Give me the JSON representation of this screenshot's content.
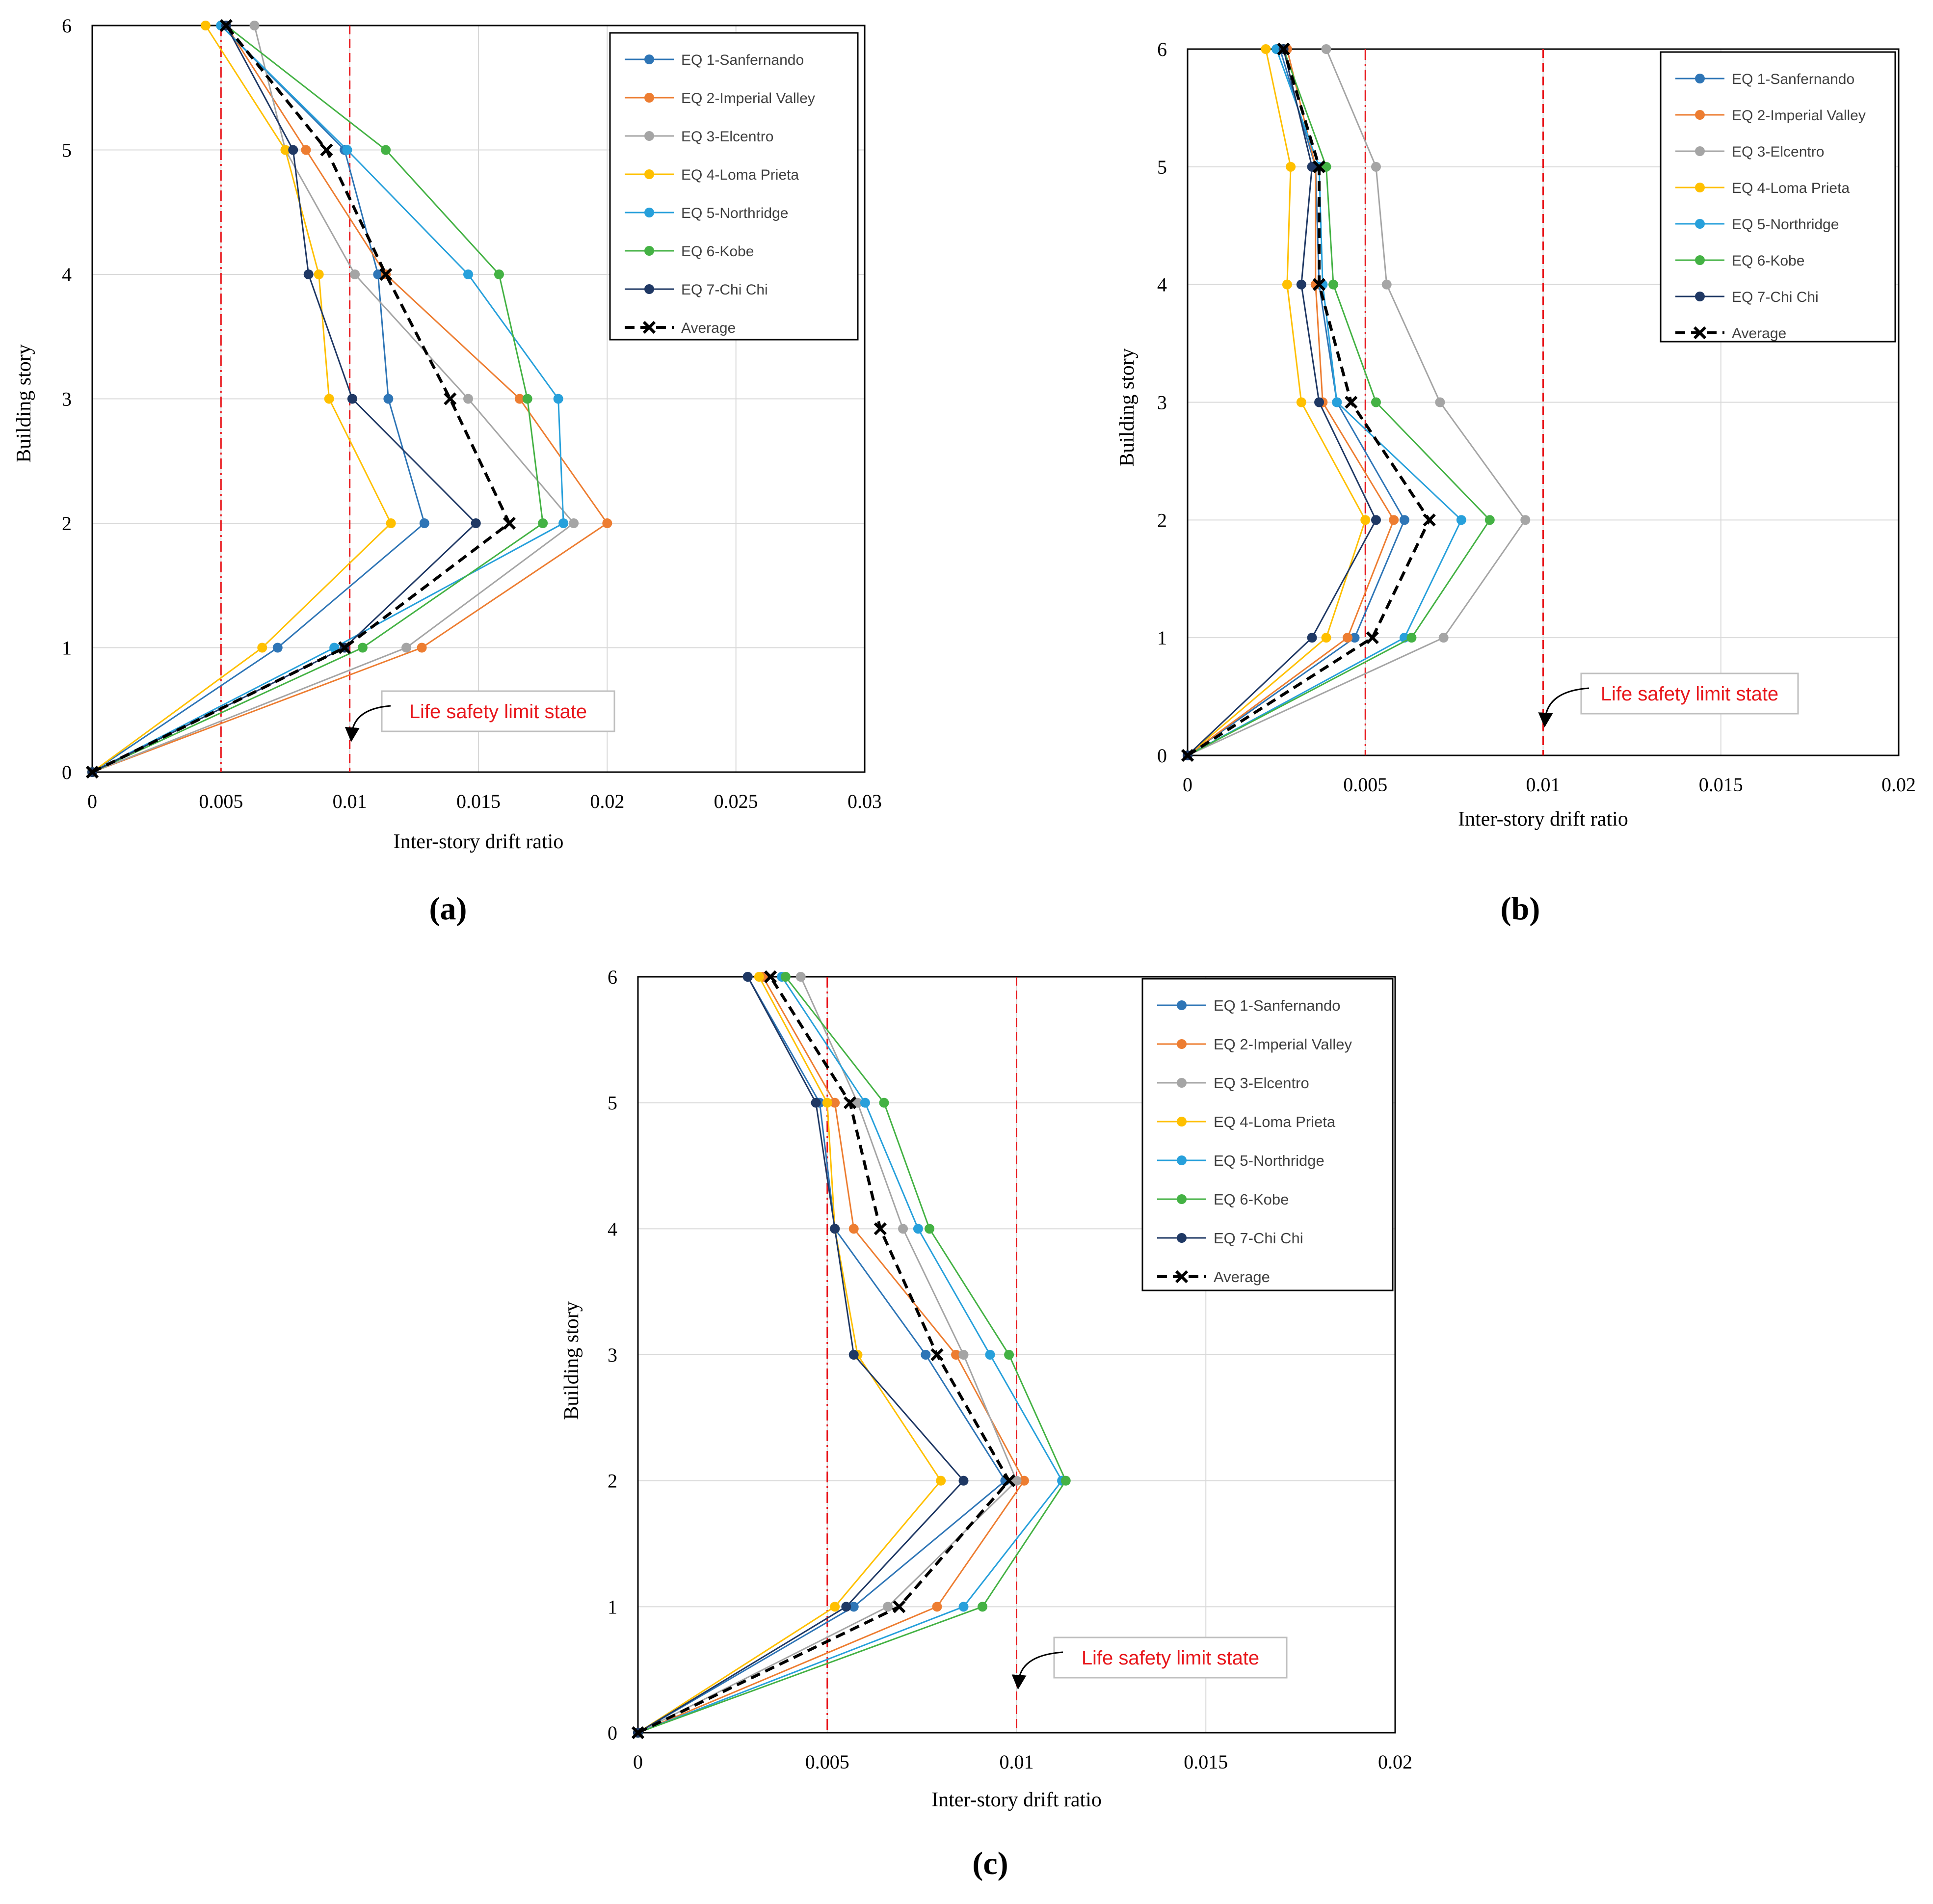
{
  "series_colors": {
    "EQ 1-Sanfernando": "#2E75B6",
    "EQ 2-Imperial Valley": "#ED7D31",
    "EQ 3-Elcentro": "#A5A5A5",
    "EQ 4-Loma Prieta": "#FFC000",
    "EQ 5-Northridge": "#27A0DB",
    "EQ 6-Kobe": "#44B244",
    "EQ 7-Chi Chi": "#1F3864",
    "Average": "#000000"
  },
  "limit_line_color": "#E8161B",
  "annotation_text_color": "#E8161B",
  "chart_data": [
    {
      "panel_label": "(a)",
      "type": "line",
      "xlabel": "Inter-story drift ratio",
      "ylabel": "Building story",
      "xlim": [
        0,
        0.03
      ],
      "ylim": [
        0,
        6
      ],
      "x_ticks": [
        "0",
        "0.005",
        "0.01",
        "0.015",
        "0.02",
        "0.025",
        "0.03"
      ],
      "y_ticks": [
        "0",
        "1",
        "2",
        "3",
        "4",
        "5",
        "6"
      ],
      "grid": true,
      "legend_position": "top-right",
      "limit_lines": [
        0.005,
        0.01
      ],
      "annotation": "Life safety limit state",
      "annotation_target": {
        "x": 0.01,
        "y": 0.3
      },
      "y": [
        0,
        1,
        2,
        3,
        4,
        5,
        6
      ],
      "series": [
        {
          "name": "EQ 1-Sanfernando",
          "x": [
            0,
            0.0072,
            0.0129,
            0.0115,
            0.0111,
            0.0098,
            0.005
          ]
        },
        {
          "name": "EQ 2-Imperial Valley",
          "x": [
            0,
            0.0128,
            0.02,
            0.0166,
            0.0114,
            0.0083,
            0.0052
          ]
        },
        {
          "name": "EQ 3-Elcentro",
          "x": [
            0,
            0.0122,
            0.0187,
            0.0146,
            0.0102,
            0.0075,
            0.0063
          ]
        },
        {
          "name": "EQ 4-Loma Prieta",
          "x": [
            0,
            0.0066,
            0.0116,
            0.0092,
            0.0088,
            0.0075,
            0.0044
          ]
        },
        {
          "name": "EQ 5-Northridge",
          "x": [
            0,
            0.0094,
            0.0183,
            0.0181,
            0.0146,
            0.0099,
            0.005
          ]
        },
        {
          "name": "EQ 6-Kobe",
          "x": [
            0,
            0.0105,
            0.0175,
            0.0169,
            0.0158,
            0.0114,
            0.0052
          ]
        },
        {
          "name": "EQ 7-Chi Chi",
          "x": [
            0,
            0.0098,
            0.0149,
            0.0101,
            0.0084,
            0.0078,
            0.0052
          ]
        },
        {
          "name": "Average",
          "x": [
            0,
            0.0098,
            0.0162,
            0.0139,
            0.0114,
            0.0091,
            0.0052
          ]
        }
      ]
    },
    {
      "panel_label": "(b)",
      "type": "line",
      "xlabel": "Inter-story drift ratio",
      "ylabel": "Building story",
      "xlim": [
        0,
        0.02
      ],
      "ylim": [
        0,
        6
      ],
      "x_ticks": [
        "0",
        "0.005",
        "0.01",
        "0.015",
        "0.02"
      ],
      "y_ticks": [
        "0",
        "1",
        "2",
        "3",
        "4",
        "5",
        "6"
      ],
      "grid": true,
      "legend_position": "top-right",
      "limit_lines": [
        0.005,
        0.01
      ],
      "annotation": "Life safety limit state",
      "annotation_target": {
        "x": 0.01,
        "y": 0.3
      },
      "y": [
        0,
        1,
        2,
        3,
        4,
        5,
        6
      ],
      "series": [
        {
          "name": "EQ 1-Sanfernando",
          "x": [
            0,
            0.0047,
            0.0061,
            0.0042,
            0.0037,
            0.0036,
            0.0026
          ]
        },
        {
          "name": "EQ 2-Imperial Valley",
          "x": [
            0,
            0.0045,
            0.0058,
            0.0038,
            0.0036,
            0.0036,
            0.0028
          ]
        },
        {
          "name": "EQ 3-Elcentro",
          "x": [
            0,
            0.0072,
            0.0095,
            0.0071,
            0.0056,
            0.0053,
            0.0039
          ]
        },
        {
          "name": "EQ 4-Loma Prieta",
          "x": [
            0,
            0.0039,
            0.005,
            0.0032,
            0.0028,
            0.0029,
            0.0022
          ]
        },
        {
          "name": "EQ 5-Northridge",
          "x": [
            0,
            0.0061,
            0.0077,
            0.0042,
            0.0038,
            0.0037,
            0.0025
          ]
        },
        {
          "name": "EQ 6-Kobe",
          "x": [
            0,
            0.0063,
            0.0085,
            0.0053,
            0.0041,
            0.0039,
            0.0027
          ]
        },
        {
          "name": "EQ 7-Chi Chi",
          "x": [
            0,
            0.0035,
            0.0053,
            0.0037,
            0.0032,
            0.0035,
            0.0027
          ]
        },
        {
          "name": "Average",
          "x": [
            0,
            0.0052,
            0.0068,
            0.0046,
            0.0037,
            0.0037,
            0.0027
          ]
        }
      ]
    },
    {
      "panel_label": "(c)",
      "type": "line",
      "xlabel": "Inter-story drift ratio",
      "ylabel": "Building story",
      "xlim": [
        0,
        0.02
      ],
      "ylim": [
        0,
        6
      ],
      "x_ticks": [
        "0",
        "0.005",
        "0.01",
        "0.015",
        "0.02"
      ],
      "y_ticks": [
        "0",
        "1",
        "2",
        "3",
        "4",
        "5",
        "6"
      ],
      "grid": true,
      "legend_position": "top-right",
      "limit_lines": [
        0.005,
        0.01
      ],
      "annotation": "Life safety limit state",
      "annotation_target": {
        "x": 0.01,
        "y": 0.4
      },
      "y": [
        0,
        1,
        2,
        3,
        4,
        5,
        6
      ],
      "series": [
        {
          "name": "EQ 1-Sanfernando",
          "x": [
            0,
            0.0057,
            0.0097,
            0.0076,
            0.0052,
            0.0048,
            0.0029
          ]
        },
        {
          "name": "EQ 2-Imperial Valley",
          "x": [
            0,
            0.0079,
            0.0102,
            0.0084,
            0.0057,
            0.0052,
            0.0033
          ]
        },
        {
          "name": "EQ 3-Elcentro",
          "x": [
            0,
            0.0066,
            0.01,
            0.0086,
            0.007,
            0.0058,
            0.0043
          ]
        },
        {
          "name": "EQ 4-Loma Prieta",
          "x": [
            0,
            0.0052,
            0.008,
            0.0058,
            0.0052,
            0.005,
            0.0032
          ]
        },
        {
          "name": "EQ 5-Northridge",
          "x": [
            0,
            0.0086,
            0.0112,
            0.0093,
            0.0074,
            0.006,
            0.0038
          ]
        },
        {
          "name": "EQ 6-Kobe",
          "x": [
            0,
            0.0091,
            0.0113,
            0.0098,
            0.0077,
            0.0065,
            0.0039
          ]
        },
        {
          "name": "EQ 7-Chi Chi",
          "x": [
            0,
            0.0055,
            0.0086,
            0.0057,
            0.0052,
            0.0047,
            0.0029
          ]
        },
        {
          "name": "Average",
          "x": [
            0,
            0.0069,
            0.0098,
            0.0079,
            0.0064,
            0.0056,
            0.0035
          ]
        }
      ]
    }
  ]
}
